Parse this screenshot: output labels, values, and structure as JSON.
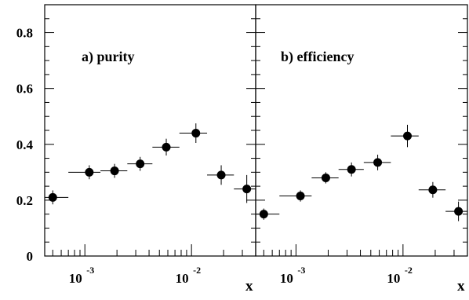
{
  "chart_data": [
    {
      "type": "scatter",
      "panel_label": "a) purity",
      "xlabel": "",
      "ylim": [
        0,
        0.9
      ],
      "yticks": [
        "0",
        "0.2",
        "0.4",
        "0.6",
        "0.8"
      ],
      "yticks_values": [
        0,
        0.2,
        0.4,
        0.6,
        0.8
      ],
      "xscale": "log",
      "xlim": [
        0.00042,
        0.04
      ],
      "xticks": [
        {
          "base": "10",
          "exp": "-3",
          "value": 0.001
        },
        {
          "base": "10",
          "exp": "-2",
          "value": 0.01
        }
      ],
      "x": [
        0.0005,
        0.0011,
        0.0019,
        0.0033,
        0.0058,
        0.011,
        0.019,
        0.033
      ],
      "x_lo": [
        0.0004,
        0.0007,
        0.0014,
        0.0025,
        0.0043,
        0.0077,
        0.014,
        0.025
      ],
      "x_hi": [
        0.0007,
        0.0014,
        0.0025,
        0.0043,
        0.0077,
        0.014,
        0.025,
        0.04
      ],
      "y": [
        0.21,
        0.3,
        0.305,
        0.33,
        0.39,
        0.44,
        0.29,
        0.24
      ],
      "yerr": [
        0.025,
        0.025,
        0.025,
        0.025,
        0.03,
        0.035,
        0.035,
        0.05
      ]
    },
    {
      "type": "scatter",
      "panel_label": "b) efficiency",
      "xlabel": "x",
      "ylim": [
        0,
        0.9
      ],
      "xscale": "log",
      "xlim": [
        0.00042,
        0.04
      ],
      "xticks": [
        {
          "base": "10",
          "exp": "-3",
          "value": 0.001
        },
        {
          "base": "10",
          "exp": "-2",
          "value": 0.01
        }
      ],
      "x": [
        0.0005,
        0.0011,
        0.0019,
        0.0033,
        0.0058,
        0.011,
        0.019,
        0.033
      ],
      "x_lo": [
        0.0004,
        0.0007,
        0.0014,
        0.0025,
        0.0043,
        0.0077,
        0.014,
        0.025
      ],
      "x_hi": [
        0.0007,
        0.0014,
        0.0025,
        0.0043,
        0.0077,
        0.014,
        0.025,
        0.04
      ],
      "y": [
        0.15,
        0.215,
        0.28,
        0.31,
        0.335,
        0.43,
        0.237,
        0.16
      ],
      "yerr": [
        0.02,
        0.02,
        0.02,
        0.025,
        0.028,
        0.04,
        0.028,
        0.035
      ]
    }
  ],
  "first_xlabel": "x"
}
